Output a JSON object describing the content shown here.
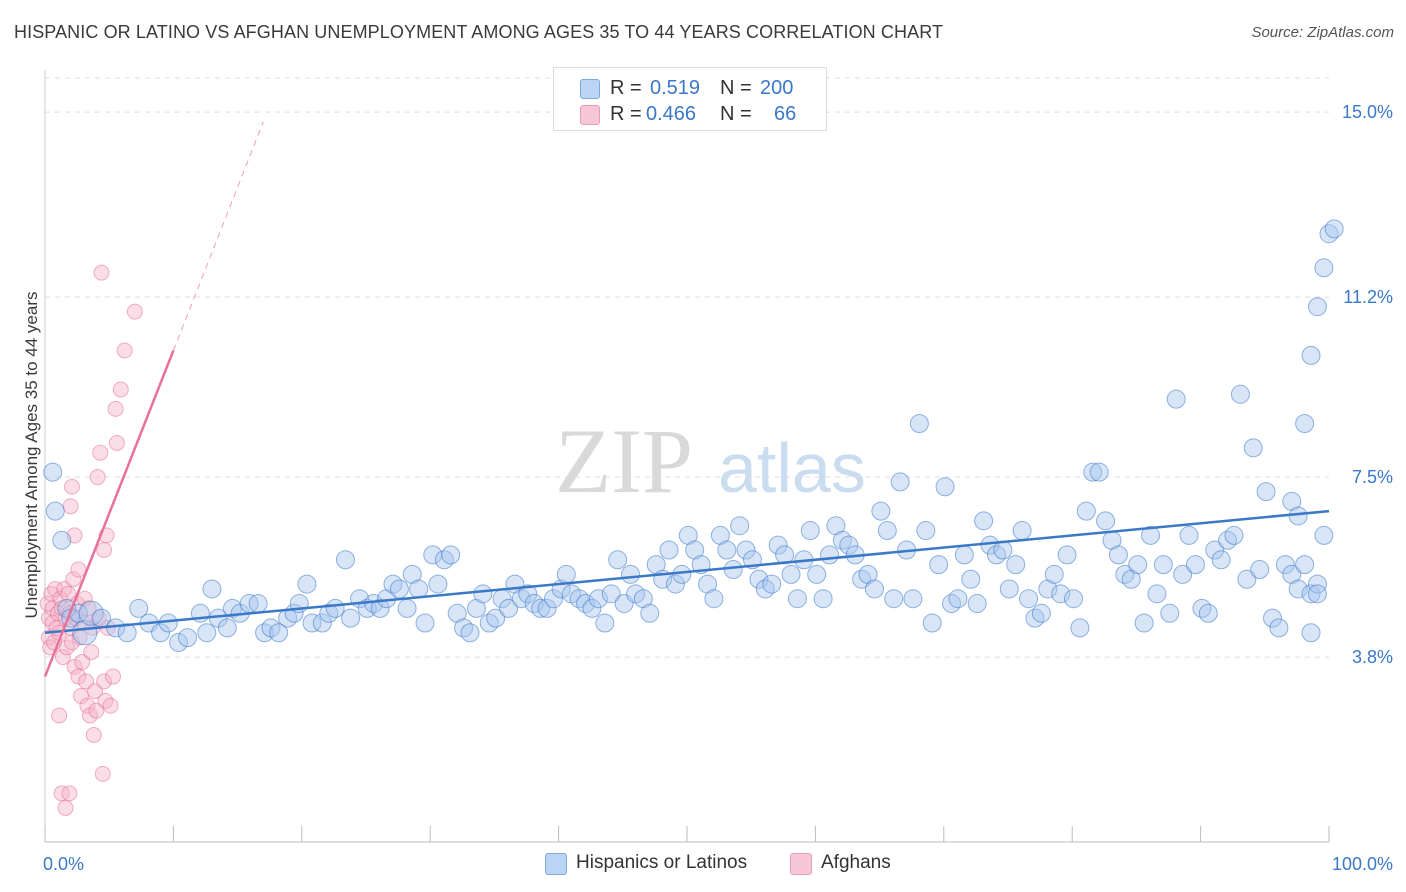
{
  "title": "HISPANIC OR LATINO VS AFGHAN UNEMPLOYMENT AMONG AGES 35 TO 44 YEARS CORRELATION CHART",
  "source": "Source: ZipAtlas.com",
  "watermark": {
    "zip": "ZIP",
    "atlas": "atlas"
  },
  "colors": {
    "blue": "#3a78c8",
    "blue_fill": "#a9c6ee",
    "pink": "#e8719a",
    "pink_fill": "#f4b3c8",
    "grid": "#dddddd",
    "axis_text": "#3a78c8"
  },
  "legend_top": {
    "rows": [
      {
        "r_label": "R = ",
        "r_value": "0.519",
        "n_label": "N = ",
        "n_value": "200"
      },
      {
        "r_label": "R = ",
        "r_value": "0.466",
        "n_label": "N = ",
        "n_value": "66"
      }
    ]
  },
  "legend_bottom": [
    {
      "label": "Hispanics or Latinos"
    },
    {
      "label": "Afghans"
    }
  ],
  "chart_data": {
    "type": "scatter",
    "title": "HISPANIC OR LATINO VS AFGHAN UNEMPLOYMENT AMONG AGES 35 TO 44 YEARS CORRELATION CHART",
    "xlabel": "",
    "ylabel": "Unemployment Among Ages 35 to 44 years",
    "xlim": [
      0,
      100
    ],
    "ylim": [
      0,
      15.7
    ],
    "x_tick_labels": [
      {
        "value": 0,
        "label": "0.0%"
      },
      {
        "value": 100,
        "label": "100.0%"
      }
    ],
    "y_tick_labels": [
      {
        "value": 3.8,
        "label": "3.8%"
      },
      {
        "value": 7.5,
        "label": "7.5%"
      },
      {
        "value": 11.2,
        "label": "11.2%"
      },
      {
        "value": 15.0,
        "label": "15.0%"
      }
    ],
    "grid": true,
    "series": [
      {
        "name": "Hispanics or Latinos",
        "r": 0.519,
        "n": 200,
        "trend": {
          "x": [
            0,
            100
          ],
          "y": [
            4.3,
            6.8
          ],
          "style": "solid"
        },
        "points": [
          [
            0.6,
            7.6
          ],
          [
            0.8,
            6.8
          ],
          [
            1.3,
            6.2
          ],
          [
            1.7,
            4.8
          ],
          [
            2.0,
            4.6
          ],
          [
            2.6,
            4.7
          ],
          [
            3.1,
            4.3
          ],
          [
            3.6,
            4.7
          ],
          [
            4.4,
            4.6
          ],
          [
            5.5,
            4.4
          ],
          [
            6.4,
            4.3
          ],
          [
            7.3,
            4.8
          ],
          [
            8.1,
            4.5
          ],
          [
            9.0,
            4.3
          ],
          [
            9.6,
            4.5
          ],
          [
            10.4,
            4.1
          ],
          [
            11.1,
            4.2
          ],
          [
            12.1,
            4.7
          ],
          [
            12.6,
            4.3
          ],
          [
            13.0,
            5.2
          ],
          [
            13.5,
            4.6
          ],
          [
            14.2,
            4.4
          ],
          [
            14.6,
            4.8
          ],
          [
            15.2,
            4.7
          ],
          [
            15.9,
            4.9
          ],
          [
            16.6,
            4.9
          ],
          [
            17.1,
            4.3
          ],
          [
            17.6,
            4.4
          ],
          [
            18.2,
            4.3
          ],
          [
            18.9,
            4.6
          ],
          [
            19.4,
            4.7
          ],
          [
            19.8,
            4.9
          ],
          [
            20.4,
            5.3
          ],
          [
            20.8,
            4.5
          ],
          [
            21.6,
            4.5
          ],
          [
            22.1,
            4.7
          ],
          [
            22.6,
            4.8
          ],
          [
            23.4,
            5.8
          ],
          [
            23.8,
            4.6
          ],
          [
            24.5,
            5.0
          ],
          [
            25.1,
            4.8
          ],
          [
            25.6,
            4.9
          ],
          [
            26.1,
            4.8
          ],
          [
            26.6,
            5.0
          ],
          [
            27.1,
            5.3
          ],
          [
            27.6,
            5.2
          ],
          [
            28.2,
            4.8
          ],
          [
            28.6,
            5.5
          ],
          [
            29.1,
            5.2
          ],
          [
            29.6,
            4.5
          ],
          [
            30.2,
            5.9
          ],
          [
            30.6,
            5.3
          ],
          [
            31.1,
            5.8
          ],
          [
            31.6,
            5.9
          ],
          [
            32.1,
            4.7
          ],
          [
            32.6,
            4.4
          ],
          [
            33.1,
            4.3
          ],
          [
            33.6,
            4.8
          ],
          [
            34.1,
            5.1
          ],
          [
            34.6,
            4.5
          ],
          [
            35.1,
            4.6
          ],
          [
            35.6,
            5.0
          ],
          [
            36.1,
            4.8
          ],
          [
            36.6,
            5.3
          ],
          [
            37.1,
            5.0
          ],
          [
            37.6,
            5.1
          ],
          [
            38.1,
            4.9
          ],
          [
            38.6,
            4.8
          ],
          [
            39.1,
            4.8
          ],
          [
            39.6,
            5.0
          ],
          [
            40.2,
            5.2
          ],
          [
            40.6,
            5.5
          ],
          [
            41.0,
            5.1
          ],
          [
            41.6,
            5.0
          ],
          [
            42.1,
            4.9
          ],
          [
            42.6,
            4.8
          ],
          [
            43.1,
            5.0
          ],
          [
            43.6,
            4.5
          ],
          [
            44.1,
            5.1
          ],
          [
            44.6,
            5.8
          ],
          [
            45.1,
            4.9
          ],
          [
            45.6,
            5.5
          ],
          [
            46.0,
            5.1
          ],
          [
            46.6,
            5.0
          ],
          [
            47.1,
            4.7
          ],
          [
            47.6,
            5.7
          ],
          [
            48.1,
            5.4
          ],
          [
            48.6,
            6.0
          ],
          [
            49.1,
            5.3
          ],
          [
            49.6,
            5.5
          ],
          [
            50.1,
            6.3
          ],
          [
            50.6,
            6.0
          ],
          [
            51.1,
            5.7
          ],
          [
            51.6,
            5.3
          ],
          [
            52.1,
            5.0
          ],
          [
            52.6,
            6.3
          ],
          [
            53.1,
            6.0
          ],
          [
            53.6,
            5.6
          ],
          [
            54.1,
            6.5
          ],
          [
            54.6,
            6.0
          ],
          [
            55.1,
            5.8
          ],
          [
            55.6,
            5.4
          ],
          [
            56.1,
            5.2
          ],
          [
            56.6,
            5.3
          ],
          [
            57.1,
            6.1
          ],
          [
            57.6,
            5.9
          ],
          [
            58.1,
            5.5
          ],
          [
            58.6,
            5.0
          ],
          [
            59.1,
            5.8
          ],
          [
            59.6,
            6.4
          ],
          [
            60.1,
            5.5
          ],
          [
            60.6,
            5.0
          ],
          [
            61.1,
            5.9
          ],
          [
            61.6,
            6.5
          ],
          [
            62.1,
            6.2
          ],
          [
            62.6,
            6.1
          ],
          [
            63.1,
            5.9
          ],
          [
            63.6,
            5.4
          ],
          [
            64.1,
            5.5
          ],
          [
            64.6,
            5.2
          ],
          [
            65.1,
            6.8
          ],
          [
            65.6,
            6.4
          ],
          [
            66.1,
            5.0
          ],
          [
            66.6,
            7.4
          ],
          [
            67.1,
            6.0
          ],
          [
            67.6,
            5.0
          ],
          [
            68.1,
            8.6
          ],
          [
            68.6,
            6.4
          ],
          [
            69.1,
            4.5
          ],
          [
            69.6,
            5.7
          ],
          [
            70.1,
            7.3
          ],
          [
            70.6,
            4.9
          ],
          [
            71.1,
            5.0
          ],
          [
            71.6,
            5.9
          ],
          [
            72.1,
            5.4
          ],
          [
            72.6,
            4.9
          ],
          [
            73.1,
            6.6
          ],
          [
            73.6,
            6.1
          ],
          [
            74.1,
            5.9
          ],
          [
            74.6,
            6.0
          ],
          [
            75.1,
            5.2
          ],
          [
            75.6,
            5.7
          ],
          [
            76.1,
            6.4
          ],
          [
            76.6,
            5.0
          ],
          [
            77.1,
            4.6
          ],
          [
            77.6,
            4.7
          ],
          [
            78.1,
            5.2
          ],
          [
            78.6,
            5.5
          ],
          [
            79.1,
            5.1
          ],
          [
            79.6,
            5.9
          ],
          [
            80.1,
            5.0
          ],
          [
            80.6,
            4.4
          ],
          [
            81.1,
            6.8
          ],
          [
            81.6,
            7.6
          ],
          [
            82.1,
            7.6
          ],
          [
            82.6,
            6.6
          ],
          [
            83.1,
            6.2
          ],
          [
            83.6,
            5.9
          ],
          [
            84.1,
            5.5
          ],
          [
            84.6,
            5.4
          ],
          [
            85.1,
            5.7
          ],
          [
            85.6,
            4.5
          ],
          [
            86.1,
            6.3
          ],
          [
            86.6,
            5.1
          ],
          [
            87.1,
            5.7
          ],
          [
            87.6,
            4.7
          ],
          [
            88.1,
            9.1
          ],
          [
            88.6,
            5.5
          ],
          [
            89.1,
            6.3
          ],
          [
            89.6,
            5.7
          ],
          [
            90.1,
            4.8
          ],
          [
            90.6,
            4.7
          ],
          [
            91.1,
            6.0
          ],
          [
            91.6,
            5.8
          ],
          [
            92.1,
            6.2
          ],
          [
            92.6,
            6.3
          ],
          [
            93.1,
            9.2
          ],
          [
            93.6,
            5.4
          ],
          [
            94.1,
            8.1
          ],
          [
            94.6,
            5.6
          ],
          [
            95.1,
            7.2
          ],
          [
            95.6,
            4.6
          ],
          [
            96.1,
            4.4
          ],
          [
            96.6,
            5.7
          ],
          [
            97.1,
            5.5
          ],
          [
            97.6,
            5.2
          ],
          [
            98.1,
            5.7
          ],
          [
            98.6,
            5.1
          ],
          [
            99.1,
            5.3
          ],
          [
            97.1,
            7.0
          ],
          [
            97.6,
            6.7
          ],
          [
            98.1,
            8.6
          ],
          [
            98.6,
            10.0
          ],
          [
            99.1,
            11.0
          ],
          [
            99.6,
            11.8
          ],
          [
            100.0,
            12.5
          ],
          [
            100.4,
            12.6
          ],
          [
            99.6,
            6.3
          ],
          [
            98.6,
            4.3
          ],
          [
            99.1,
            5.1
          ]
        ]
      },
      {
        "name": "Afghans",
        "r": 0.466,
        "n": 66,
        "trend": {
          "x": [
            0,
            10
          ],
          "y": [
            3.4,
            10.1
          ],
          "style": "solid",
          "extension": {
            "x": [
              10,
              17
            ],
            "y": [
              10.1,
              14.8
            ],
            "style": "dashed"
          }
        },
        "points": [
          [
            0.2,
            4.9
          ],
          [
            0.3,
            4.6
          ],
          [
            0.3,
            4.2
          ],
          [
            0.4,
            4.0
          ],
          [
            0.5,
            5.1
          ],
          [
            0.6,
            4.5
          ],
          [
            0.6,
            4.8
          ],
          [
            0.7,
            4.1
          ],
          [
            0.8,
            5.2
          ],
          [
            0.9,
            4.4
          ],
          [
            1.0,
            4.7
          ],
          [
            1.1,
            4.3
          ],
          [
            1.2,
            5.0
          ],
          [
            1.3,
            4.8
          ],
          [
            1.4,
            3.8
          ],
          [
            1.5,
            5.2
          ],
          [
            1.6,
            4.6
          ],
          [
            1.7,
            4.0
          ],
          [
            1.8,
            5.1
          ],
          [
            1.9,
            4.7
          ],
          [
            2.0,
            4.4
          ],
          [
            2.1,
            4.1
          ],
          [
            2.2,
            5.4
          ],
          [
            2.3,
            3.6
          ],
          [
            2.4,
            4.6
          ],
          [
            2.5,
            4.9
          ],
          [
            2.6,
            3.4
          ],
          [
            2.7,
            4.2
          ],
          [
            2.8,
            3.0
          ],
          [
            2.9,
            3.7
          ],
          [
            3.0,
            4.5
          ],
          [
            3.1,
            5.0
          ],
          [
            3.2,
            3.3
          ],
          [
            3.3,
            2.8
          ],
          [
            3.4,
            4.8
          ],
          [
            3.5,
            2.6
          ],
          [
            3.6,
            3.9
          ],
          [
            3.7,
            4.4
          ],
          [
            3.8,
            2.2
          ],
          [
            3.9,
            3.1
          ],
          [
            4.0,
            2.7
          ],
          [
            4.1,
            7.5
          ],
          [
            4.2,
            4.6
          ],
          [
            4.3,
            8.0
          ],
          [
            4.4,
            11.7
          ],
          [
            4.5,
            1.4
          ],
          [
            4.6,
            3.3
          ],
          [
            4.7,
            2.9
          ],
          [
            4.8,
            6.3
          ],
          [
            4.9,
            4.4
          ],
          [
            1.1,
            2.6
          ],
          [
            1.3,
            1.0
          ],
          [
            1.6,
            0.7
          ],
          [
            1.9,
            1.0
          ],
          [
            2.1,
            7.3
          ],
          [
            2.0,
            6.9
          ],
          [
            2.3,
            6.3
          ],
          [
            2.6,
            5.6
          ],
          [
            5.1,
            2.8
          ],
          [
            5.3,
            3.4
          ],
          [
            5.6,
            8.2
          ],
          [
            5.9,
            9.3
          ],
          [
            6.2,
            10.1
          ],
          [
            7.0,
            10.9
          ],
          [
            5.5,
            8.9
          ],
          [
            4.6,
            6.0
          ]
        ]
      }
    ]
  }
}
